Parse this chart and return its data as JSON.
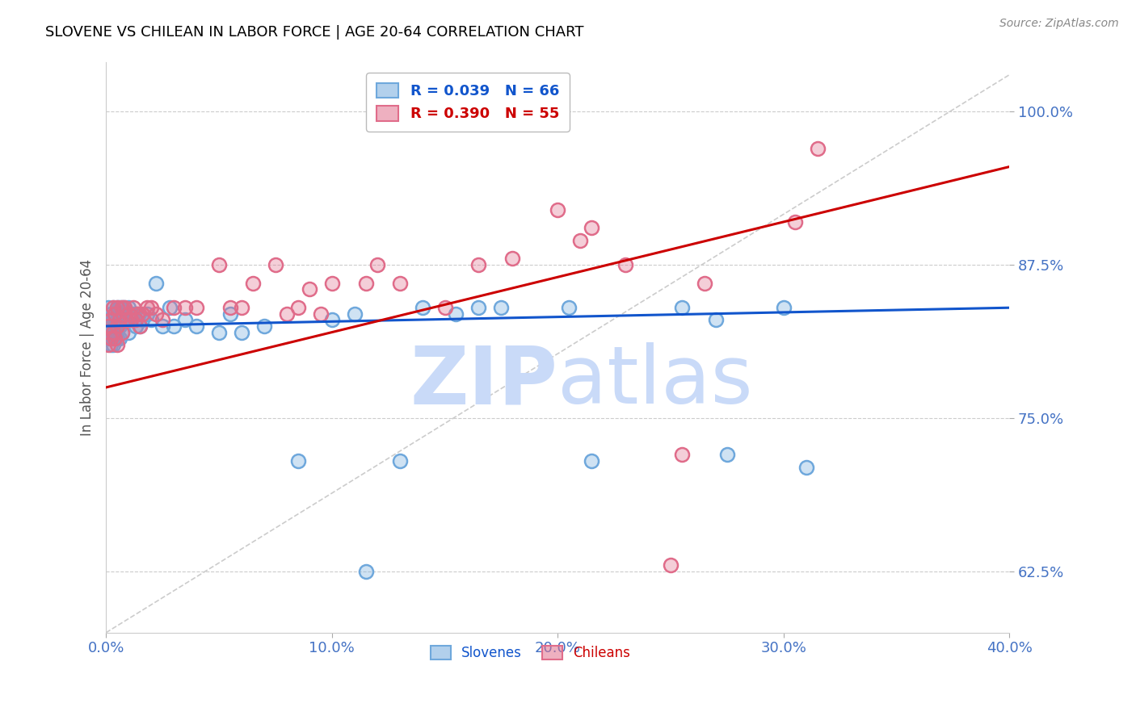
{
  "title": "SLOVENE VS CHILEAN IN LABOR FORCE | AGE 20-64 CORRELATION CHART",
  "source": "Source: ZipAtlas.com",
  "ylabel": "In Labor Force | Age 20-64",
  "xlim": [
    0.0,
    0.4
  ],
  "ylim": [
    0.575,
    1.04
  ],
  "yticks": [
    0.625,
    0.75,
    0.875,
    1.0
  ],
  "ytick_labels": [
    "62.5%",
    "75.0%",
    "87.5%",
    "100.0%"
  ],
  "xticks": [
    0.0,
    0.1,
    0.2,
    0.3,
    0.4
  ],
  "xtick_labels": [
    "0.0%",
    "10.0%",
    "20.0%",
    "30.0%",
    "40.0%"
  ],
  "slovene_R": 0.039,
  "slovene_N": 66,
  "chilean_R": 0.39,
  "chilean_N": 55,
  "slovene_color": "#6fa8dc",
  "chilean_color": "#e06c8a",
  "slovene_line_color": "#1155cc",
  "chilean_line_color": "#cc0000",
  "trend_line_color": "#cccccc",
  "background_color": "#ffffff",
  "grid_color": "#cccccc",
  "title_color": "#000000",
  "tick_label_color": "#4472c4",
  "watermark_color": "#c9daf8",
  "slovene_x": [
    0.001,
    0.001,
    0.001,
    0.001,
    0.002,
    0.002,
    0.002,
    0.002,
    0.003,
    0.003,
    0.003,
    0.003,
    0.003,
    0.004,
    0.004,
    0.004,
    0.005,
    0.005,
    0.005,
    0.005,
    0.006,
    0.006,
    0.006,
    0.006,
    0.007,
    0.007,
    0.007,
    0.008,
    0.008,
    0.009,
    0.01,
    0.01,
    0.011,
    0.012,
    0.013,
    0.014,
    0.015,
    0.016,
    0.018,
    0.02,
    0.022,
    0.025,
    0.028,
    0.03,
    0.035,
    0.04,
    0.05,
    0.055,
    0.06,
    0.07,
    0.085,
    0.1,
    0.11,
    0.115,
    0.13,
    0.14,
    0.155,
    0.165,
    0.175,
    0.205,
    0.215,
    0.255,
    0.27,
    0.275,
    0.3,
    0.31
  ],
  "slovene_y": [
    0.84,
    0.83,
    0.82,
    0.815,
    0.835,
    0.825,
    0.82,
    0.81,
    0.84,
    0.83,
    0.82,
    0.815,
    0.81,
    0.835,
    0.825,
    0.82,
    0.84,
    0.83,
    0.825,
    0.815,
    0.84,
    0.835,
    0.825,
    0.815,
    0.84,
    0.83,
    0.82,
    0.84,
    0.83,
    0.83,
    0.84,
    0.82,
    0.835,
    0.835,
    0.825,
    0.835,
    0.825,
    0.83,
    0.835,
    0.83,
    0.86,
    0.825,
    0.84,
    0.825,
    0.83,
    0.825,
    0.82,
    0.835,
    0.82,
    0.825,
    0.715,
    0.83,
    0.835,
    0.625,
    0.715,
    0.84,
    0.835,
    0.84,
    0.84,
    0.84,
    0.715,
    0.84,
    0.83,
    0.72,
    0.84,
    0.71
  ],
  "chilean_x": [
    0.001,
    0.001,
    0.002,
    0.002,
    0.003,
    0.003,
    0.004,
    0.004,
    0.005,
    0.005,
    0.005,
    0.006,
    0.007,
    0.007,
    0.008,
    0.009,
    0.01,
    0.011,
    0.012,
    0.013,
    0.014,
    0.015,
    0.016,
    0.018,
    0.02,
    0.022,
    0.025,
    0.03,
    0.035,
    0.04,
    0.05,
    0.055,
    0.06,
    0.065,
    0.075,
    0.08,
    0.085,
    0.09,
    0.095,
    0.1,
    0.115,
    0.12,
    0.13,
    0.15,
    0.165,
    0.18,
    0.2,
    0.21,
    0.215,
    0.23,
    0.25,
    0.255,
    0.265,
    0.305,
    0.315
  ],
  "chilean_y": [
    0.825,
    0.81,
    0.83,
    0.815,
    0.84,
    0.82,
    0.835,
    0.815,
    0.84,
    0.825,
    0.81,
    0.83,
    0.84,
    0.82,
    0.84,
    0.83,
    0.835,
    0.83,
    0.84,
    0.83,
    0.835,
    0.825,
    0.835,
    0.84,
    0.84,
    0.835,
    0.83,
    0.84,
    0.84,
    0.84,
    0.875,
    0.84,
    0.84,
    0.86,
    0.875,
    0.835,
    0.84,
    0.855,
    0.835,
    0.86,
    0.86,
    0.875,
    0.86,
    0.84,
    0.875,
    0.88,
    0.92,
    0.895,
    0.905,
    0.875,
    0.63,
    0.72,
    0.86,
    0.91,
    0.97
  ],
  "slovene_line": {
    "x0": 0.0,
    "x1": 0.4,
    "y0": 0.825,
    "y1": 0.84
  },
  "chilean_line": {
    "x0": 0.0,
    "x1": 0.4,
    "y0": 0.775,
    "y1": 0.955
  },
  "ref_line": {
    "x0": 0.0,
    "x1": 0.4,
    "y0": 0.575,
    "y1": 1.03
  }
}
